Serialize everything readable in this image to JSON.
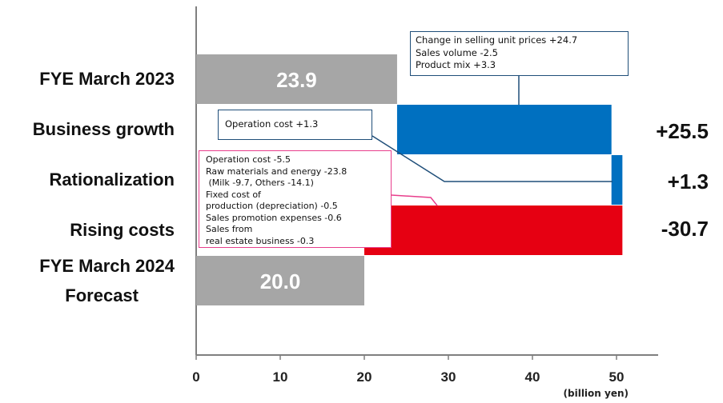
{
  "chart_data": {
    "type": "bar",
    "subtype": "waterfall-horizontal",
    "unit_label": "(billion yen)",
    "xlim": [
      0,
      55
    ],
    "x_ticks": [
      "0",
      "10",
      "20",
      "30",
      "40",
      "50"
    ],
    "x_tick_values": [
      0,
      10,
      20,
      30,
      40,
      50
    ],
    "categories": [
      [
        "FYE March 2023"
      ],
      [
        "Business growth"
      ],
      [
        "Rationalization"
      ],
      [
        "Rising costs"
      ],
      [
        "FYE March 2024",
        "Forecast"
      ]
    ],
    "bars": [
      {
        "kind": "total",
        "start": 0,
        "end": 23.9,
        "label": "23.9",
        "color": "#a6a6a6"
      },
      {
        "kind": "delta",
        "start": 23.9,
        "end": 49.4,
        "label": "+25.5",
        "color": "#0070c0"
      },
      {
        "kind": "delta",
        "start": 49.4,
        "end": 50.7,
        "label": "+1.3",
        "color": "#0070c0"
      },
      {
        "kind": "delta",
        "start": 50.7,
        "end": 20.0,
        "label": "-30.7",
        "color": "#e60012"
      },
      {
        "kind": "total",
        "start": 0,
        "end": 20.0,
        "label": "20.0",
        "color": "#a6a6a6"
      }
    ]
  },
  "callouts": {
    "business_growth": {
      "lines": [
        "Change in selling unit prices  +24.7",
        "Sales volume  -2.5",
        "Product mix   +3.3"
      ],
      "border_color": "#1f4e79"
    },
    "rationalization": {
      "lines": [
        "Operation cost  +1.3"
      ],
      "border_color": "#1f4e79"
    },
    "rising_costs": {
      "lines": [
        "Operation cost  -5.5",
        "Raw materials and energy   -23.8",
        " (Milk -9.7, Others -14.1)",
        "Fixed cost of",
        "production (depreciation)   -0.5",
        "Sales promotion expenses -0.6",
        "Sales from",
        "real estate business  -0.3"
      ],
      "border_color": "#e83e8c"
    }
  }
}
